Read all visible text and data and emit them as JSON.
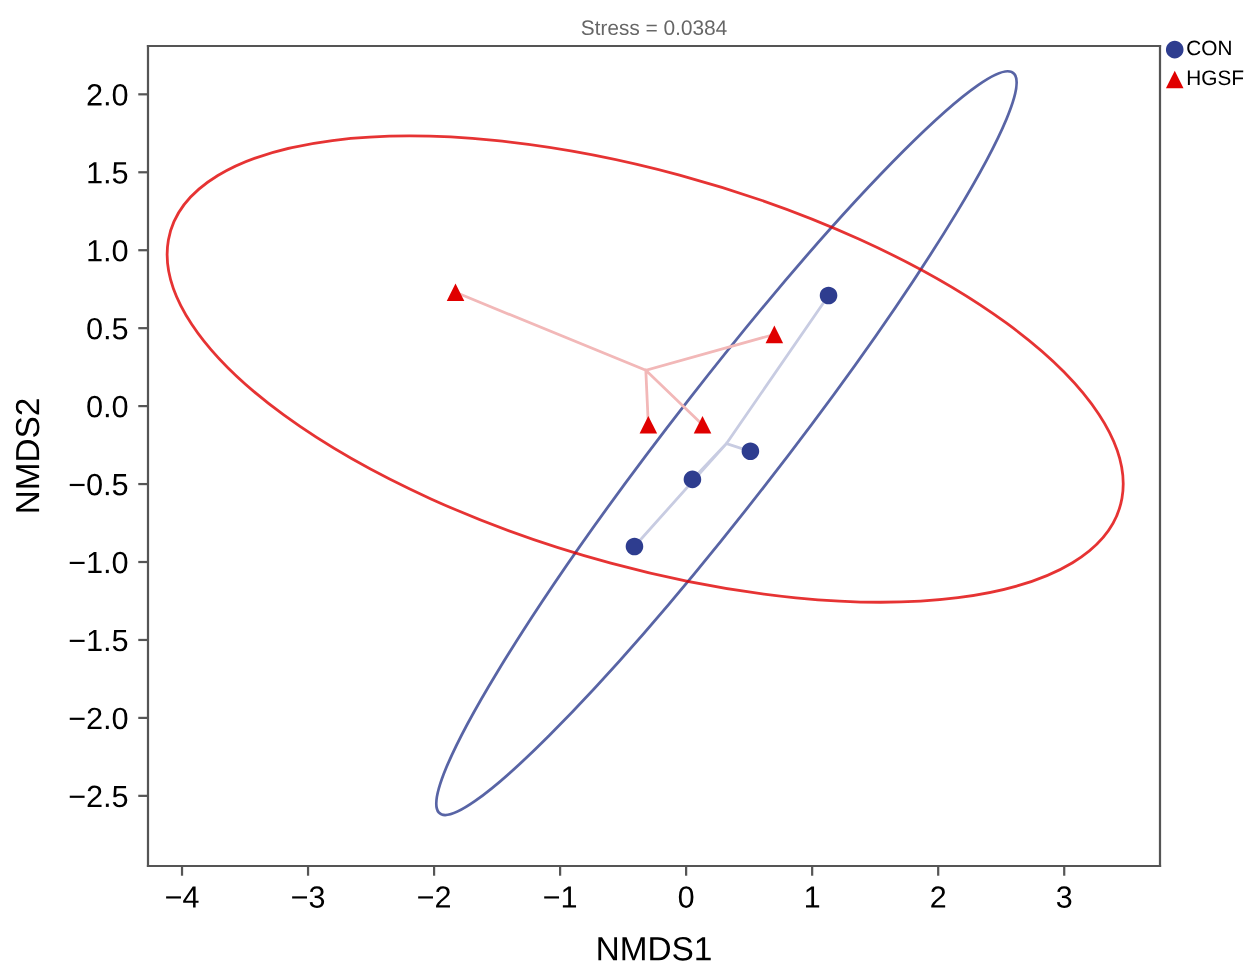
{
  "chart_data": {
    "type": "scatter",
    "title": "Stress = 0.0384",
    "xlabel": "NMDS1",
    "ylabel": "NMDS2",
    "xlim": [
      -4.27,
      3.76
    ],
    "ylim": [
      -2.95,
      2.31
    ],
    "xticks": [
      {
        "value": -4,
        "label": "−4"
      },
      {
        "value": -3,
        "label": "−3"
      },
      {
        "value": -2,
        "label": "−2"
      },
      {
        "value": -1,
        "label": "−1"
      },
      0,
      1,
      2,
      3
    ],
    "yticks": [
      {
        "value": -2.5,
        "label": "−2.5"
      },
      {
        "value": -2,
        "label": "−2.0"
      },
      {
        "value": -1.5,
        "label": "−1.5"
      },
      {
        "value": -1,
        "label": "−1.0"
      },
      {
        "value": -0.5,
        "label": "−0.5"
      },
      {
        "value": 0,
        "label": "0.0"
      },
      {
        "value": 0.5,
        "label": "0.5"
      },
      {
        "value": 1,
        "label": "1.0"
      },
      {
        "value": 1.5,
        "label": "1.5"
      },
      {
        "value": 2,
        "label": "2.0"
      }
    ],
    "grid": false,
    "legend": "top right",
    "series": [
      {
        "type": "line",
        "color": "#c8cce2",
        "x": [
          0.32,
          1.13,
          null,
          0.32,
          0.05,
          null,
          0.32,
          0.51,
          null,
          0.32,
          -0.41
        ],
        "values": [
          -0.24,
          0.71,
          null,
          -0.24,
          -0.47,
          null,
          -0.24,
          -0.29,
          null,
          -0.24,
          -0.9
        ]
      },
      {
        "type": "line",
        "color": "#f2b8b8",
        "x": [
          -0.32,
          -1.83,
          null,
          -0.32,
          -0.3,
          null,
          -0.32,
          0.13,
          null,
          -0.32,
          0.7
        ],
        "values": [
          0.23,
          0.73,
          null,
          0.23,
          -0.12,
          null,
          0.23,
          -0.12,
          null,
          0.23,
          0.46
        ]
      },
      {
        "name": "CON",
        "color": "#2e3d8f",
        "marker": "circle",
        "x": [
          1.13,
          0.05,
          0.51,
          -0.41
        ],
        "values": [
          0.71,
          -0.47,
          -0.29,
          -0.9
        ]
      },
      {
        "name": "HGSF",
        "color": "#e00000",
        "marker": "triangle",
        "x": [
          -1.83,
          -0.3,
          0.13,
          0.7
        ],
        "values": [
          0.73,
          -0.12,
          -0.12,
          0.46
        ]
      }
    ]
  }
}
